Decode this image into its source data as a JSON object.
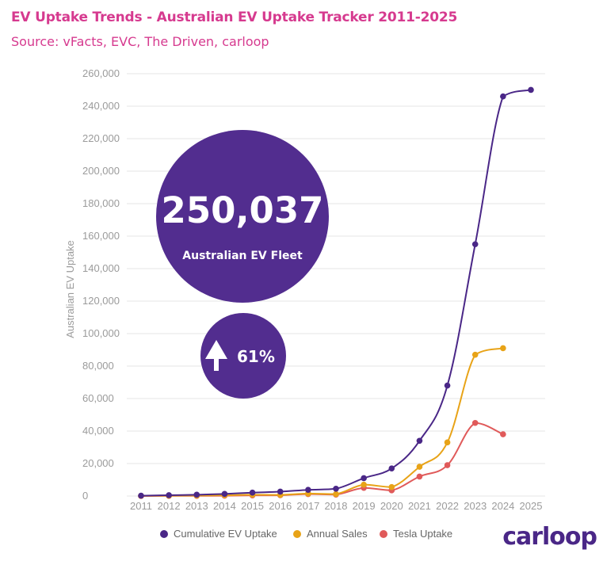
{
  "header": {
    "title": "EV Uptake Trends - Australian EV Uptake Tracker 2011-2025",
    "subtitle": "Source: vFacts, EVC, The Driven, carloop"
  },
  "badges": {
    "fleet_value": "250,037",
    "fleet_label": "Australian EV Fleet",
    "growth_value": "61%"
  },
  "brand": {
    "logo_text": "carloop"
  },
  "colors": {
    "title": "#d63a8f",
    "cumulative": "#4a2787",
    "annual": "#e8a317",
    "tesla": "#e05a5a",
    "badge": "#522d8f",
    "grid": "#e6e6e6"
  },
  "chart_data": {
    "type": "line",
    "title": "EV Uptake Trends - Australian EV Uptake Tracker 2011-2025",
    "ylabel": "Australian EV Uptake",
    "xlabel": "",
    "ylim": [
      0,
      260000
    ],
    "yticks": [
      "0",
      "20,000",
      "40,000",
      "60,000",
      "80,000",
      "100,000",
      "120,000",
      "140,000",
      "160,000",
      "180,000",
      "200,000",
      "220,000",
      "240,000",
      "260,000"
    ],
    "categories": [
      "2011",
      "2012",
      "2013",
      "2014",
      "2015",
      "2016",
      "2017",
      "2018",
      "2019",
      "2020",
      "2021",
      "2022",
      "2023",
      "2024",
      "2025"
    ],
    "legend_position": "bottom",
    "series": [
      {
        "name": "Cumulative EV Uptake",
        "color": "#4a2787",
        "values": [
          200,
          500,
          800,
          1300,
          2100,
          2700,
          3800,
          4500,
          11000,
          17000,
          34000,
          68000,
          155000,
          246000,
          250037
        ]
      },
      {
        "name": "Annual Sales",
        "color": "#e8a317",
        "values": [
          100,
          200,
          300,
          500,
          800,
          700,
          1500,
          1200,
          7000,
          5500,
          18000,
          33000,
          87000,
          91000,
          null
        ]
      },
      {
        "name": "Tesla Uptake",
        "color": "#e05a5a",
        "values": [
          0,
          100,
          100,
          200,
          400,
          500,
          1200,
          900,
          5000,
          3500,
          12000,
          19000,
          45000,
          38000,
          null
        ]
      }
    ]
  }
}
